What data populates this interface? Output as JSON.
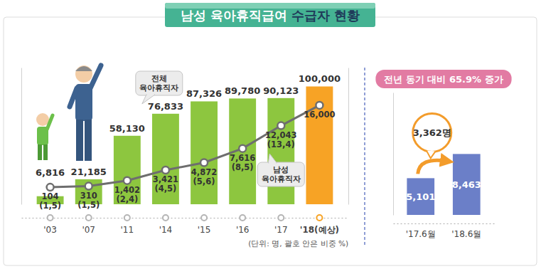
{
  "chart_data": [
    {
      "type": "bar",
      "title": "남성 육아휴직급여 수급자 현황",
      "note": "(단위: 명, 괄호 안은 비중 %)",
      "categories": [
        "'03",
        "'07",
        "'11",
        "'14",
        "'15",
        "'16",
        "'17",
        "'18(예상)"
      ],
      "series": [
        {
          "name": "전체 육아휴직자",
          "type": "bar",
          "colors": [
            "#8dc63f",
            "#8dc63f",
            "#8dc63f",
            "#8dc63f",
            "#8dc63f",
            "#8dc63f",
            "#8dc63f",
            "#f7a325"
          ],
          "values": [
            6816,
            21185,
            58130,
            76833,
            87326,
            89780,
            90123,
            100000
          ],
          "value_labels": [
            "6,816",
            "21,185",
            "58,130",
            "76,833",
            "87,326",
            "89,780",
            "90,123",
            "100,000"
          ]
        },
        {
          "name": "남성 육아휴직자",
          "type": "line",
          "axis": "y2",
          "color": "#6e6e6e",
          "marker": "circle",
          "values": [
            104,
            310,
            1402,
            3421,
            4872,
            7616,
            12043,
            16000
          ],
          "value_labels": [
            "104",
            "310",
            "1,402",
            "3,421",
            "4,872",
            "7,616",
            "12,043",
            "16,000"
          ],
          "shares": [
            1.5,
            1.5,
            2.4,
            4.5,
            5.6,
            8.5,
            13.4,
            null
          ],
          "share_labels": [
            "(1,5)",
            "(1,5)",
            "(2,4)",
            "(4,5)",
            "(5,6)",
            "(8,5)",
            "(13,4)",
            null
          ]
        }
      ],
      "ylim": [
        0,
        116000
      ],
      "yticks": [],
      "y2lim": [
        -3200,
        23300
      ],
      "y2ticks": [],
      "tick_labels": "x",
      "data_labels": true
    },
    {
      "type": "bar",
      "title": "전년 동기 대비 65.9% 증가",
      "categories": [
        "'17.6월",
        "'18.6월"
      ],
      "values": [
        5101,
        8463
      ],
      "value_labels": [
        "5,101",
        "8,463"
      ],
      "color": "#6b7fc8",
      "change": 3362,
      "change_label": "3,362명",
      "ylim": [
        0,
        17000
      ],
      "yticks": [],
      "tick_labels": "x",
      "data_labels": true
    }
  ]
}
